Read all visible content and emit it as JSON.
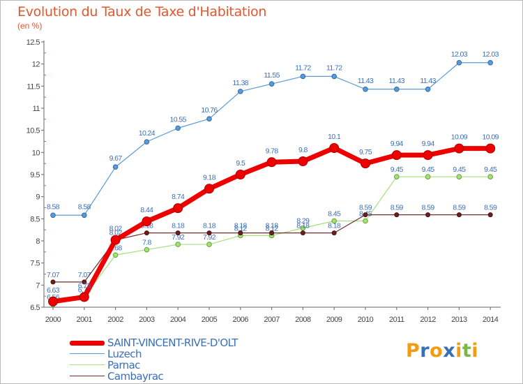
{
  "header": {
    "title": "Evolution du Taux de Taxe d'Habitation",
    "subtitle": "(en %)"
  },
  "logo": {
    "letters": [
      "P",
      "r",
      "o",
      "x",
      "i",
      "t",
      "i"
    ],
    "colors": [
      "#f39c12",
      "#3a6fb7",
      "#f39c12",
      "#3a6fb7",
      "#f39c12",
      "#7ab648",
      "#f39c12"
    ]
  },
  "chart_data": {
    "type": "line",
    "title": "Evolution du Taux de Taxe d'Habitation",
    "subtitle": "(en %)",
    "x": [
      "2000",
      "2001",
      "2002",
      "2003",
      "2004",
      "2005",
      "2006",
      "2007",
      "2008",
      "2009",
      "2010",
      "2011",
      "2012",
      "2013",
      "2014"
    ],
    "ylim": [
      6.5,
      12.5
    ],
    "yticks": [
      6.5,
      7,
      7.5,
      8,
      8.5,
      9,
      9.5,
      10,
      10.5,
      11,
      11.5,
      12,
      12.5
    ],
    "grid": false,
    "legend_position": "bottom-left",
    "series": [
      {
        "name": "Luzech",
        "color": "#5b9bd5",
        "values": [
          8.58,
          8.58,
          9.67,
          10.24,
          10.55,
          10.76,
          11.38,
          11.55,
          11.72,
          11.72,
          11.43,
          11.43,
          11.43,
          12.03,
          12.03
        ],
        "labels": [
          "8.58",
          "8.58",
          "9.67",
          "10.24",
          "10.55",
          "10.76",
          "11.38",
          "11.55",
          "11.72",
          "11.72",
          "11.43",
          "11.43",
          "11.43",
          "12.03",
          "12.03"
        ]
      },
      {
        "name": "Parnac",
        "color": "#a6e07a",
        "values": [
          6.56,
          6.73,
          7.68,
          7.8,
          7.92,
          7.92,
          8.12,
          8.12,
          8.29,
          8.45,
          8.45,
          9.45,
          9.45,
          9.45,
          9.45
        ],
        "labels": [
          "6.56",
          "6.73",
          "7.68",
          "7.8",
          "7.92",
          "7.92",
          "8.12",
          "8.12",
          "8.29",
          "8.45",
          "8.45",
          "9.45",
          "9.45",
          "9.45",
          "9.45"
        ]
      },
      {
        "name": "Cambayrac",
        "color": "#7a2a2a",
        "values": [
          7.07,
          7.07,
          8.02,
          8.18,
          8.18,
          8.18,
          8.18,
          8.18,
          8.18,
          8.18,
          8.59,
          8.59,
          8.59,
          8.59,
          8.59
        ],
        "labels": [
          "7.07",
          "7.07",
          "8.02",
          "8.18",
          "8.18",
          "8.18",
          "8.18",
          "8.18",
          "8.18",
          "8.18",
          "8.59",
          "8.59",
          "8.59",
          "8.59",
          "8.59"
        ]
      },
      {
        "name": "SAINT-VINCENT-RIVE-D'OLT",
        "color": "#ee0000",
        "values": [
          6.63,
          6.73,
          8.02,
          8.44,
          8.74,
          9.18,
          9.5,
          9.78,
          9.8,
          10.1,
          9.75,
          9.94,
          9.94,
          10.09,
          10.09
        ],
        "labels": [
          "6.63",
          "6.73",
          "8.02",
          "8.44",
          "8.74",
          "9.18",
          "9.5",
          "9.78",
          "9.8",
          "10.1",
          "9.75",
          "9.94",
          "9.94",
          "10.09",
          "10.09"
        ]
      }
    ],
    "legend": [
      {
        "name": "SAINT-VINCENT-RIVE-D'OLT",
        "color": "#ee0000"
      },
      {
        "name": "Luzech",
        "color": "#5b9bd5"
      },
      {
        "name": "Parnac",
        "color": "#a6e07a"
      },
      {
        "name": "Cambayrac",
        "color": "#7a2a2a"
      }
    ]
  }
}
